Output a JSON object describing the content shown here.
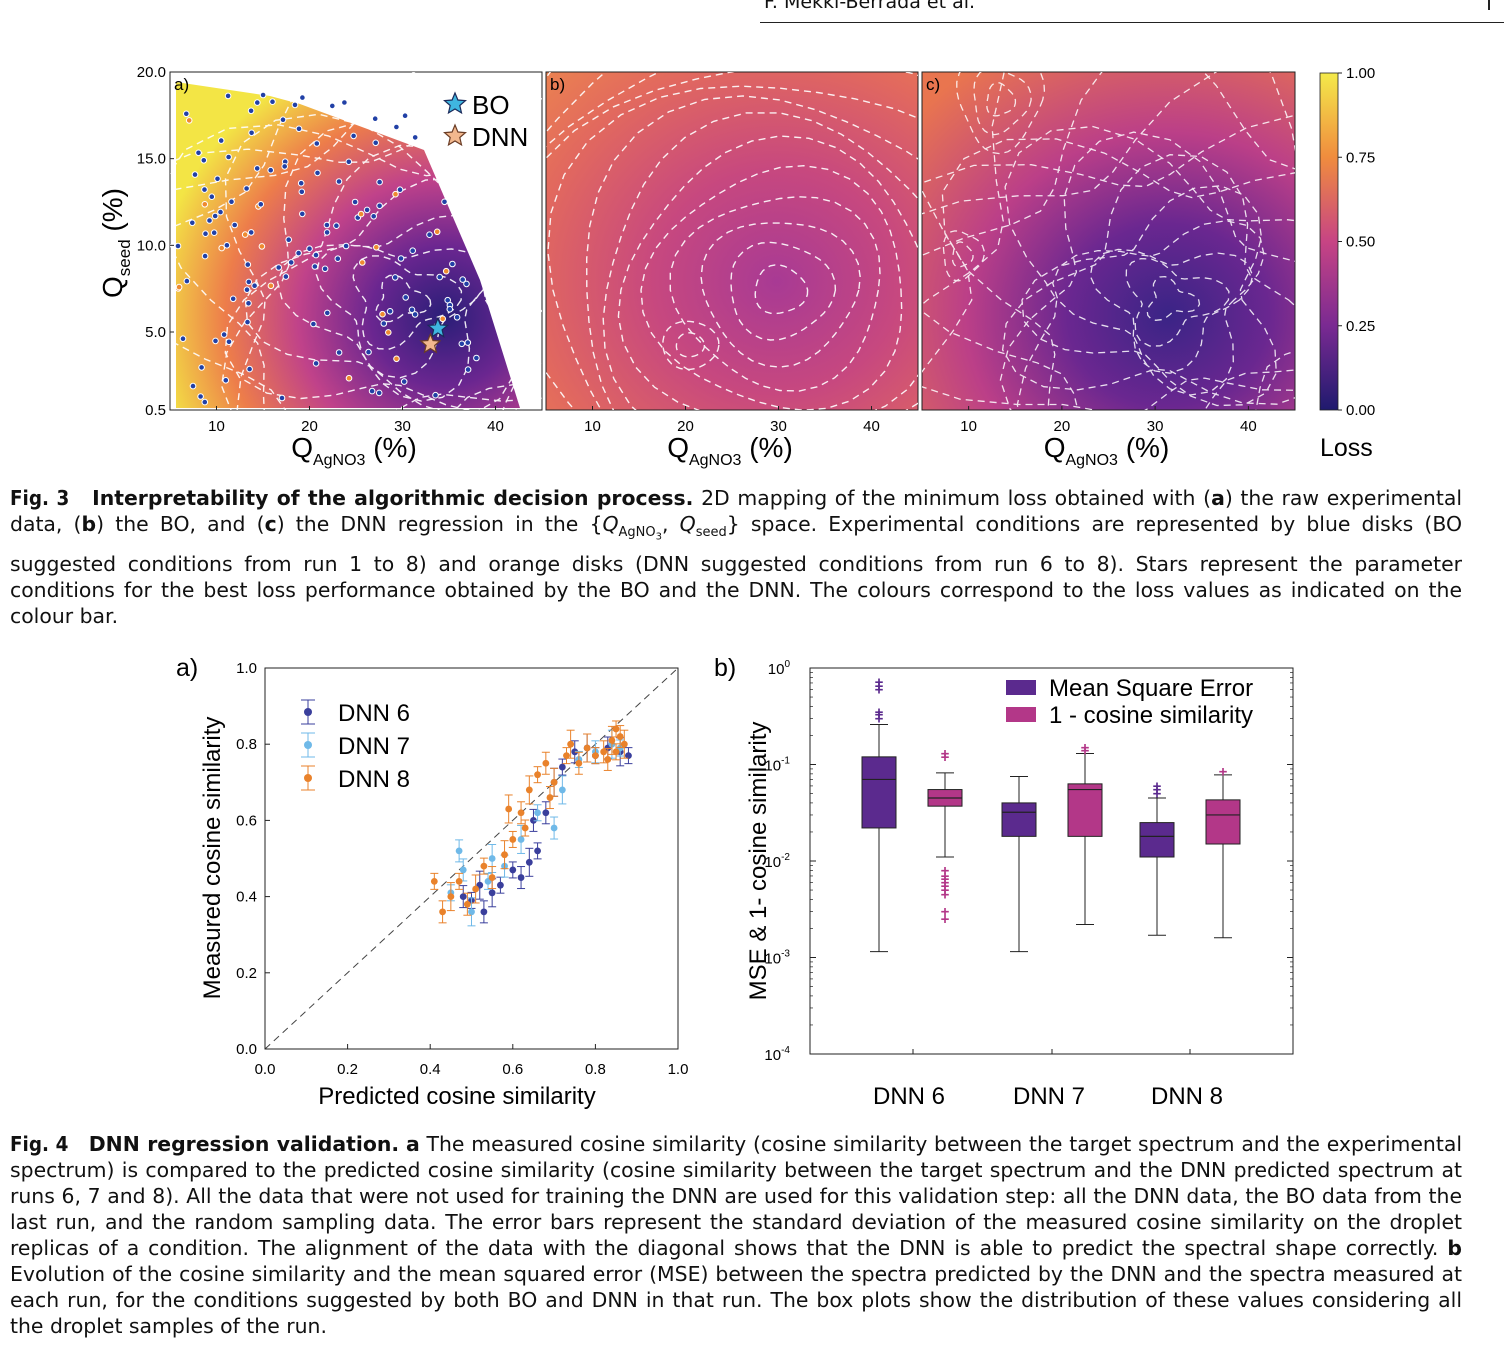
{
  "header": {
    "author": "F. Mekki-Berrada et al."
  },
  "fig3": {
    "panel_labels": [
      "a)",
      "b)",
      "c)"
    ],
    "legend": {
      "bo": "BO",
      "dnn": "DNN"
    },
    "y_label_main": "Q",
    "y_label_sub": "seed",
    "y_label_unit": " (%)",
    "x_label_main": "Q",
    "x_label_sub": "AgNO3",
    "x_label_unit": " (%)",
    "colorbar_label": "Loss",
    "colors": {
      "low": "#2a1e78",
      "mid": "#c0428a",
      "high": "#f3e545",
      "bo_point": "#2140a6",
      "dnn_point": "#ee8a30",
      "bo_star": "#3fb6e0",
      "dnn_star": "#f2b88e"
    },
    "chart_data": {
      "type": "heatmap",
      "x_ticks": [
        "10",
        "20",
        "30",
        "40"
      ],
      "y_ticks": [
        "20.0",
        "15.0",
        "10.0",
        "5.0",
        "0.5"
      ],
      "colorbar_ticks": [
        "1.00",
        "0.75",
        "0.50",
        "0.25",
        "0.00"
      ],
      "xlim": [
        5,
        45
      ],
      "ylim": [
        0.5,
        20
      ],
      "zlim": [
        0,
        1
      ],
      "best": {
        "bo": [
          33.8,
          5.2
        ],
        "dnn": [
          33.0,
          4.3
        ]
      }
    },
    "caption_label": "Fig. 3",
    "caption_title": "Interpretability of the algorithmic decision process.",
    "caption_parts": [
      "2D mapping of the minimum loss obtained with (",
      "a",
      ") the raw experimental data, (",
      "b",
      ") the BO, and (",
      "c",
      ") the DNN regression in the {",
      "Q",
      "AgNO",
      "3",
      ", ",
      "Q",
      "seed",
      "} space. Experimental conditions are represented by blue disks (BO suggested conditions from run 1 to 8) and orange disks (DNN suggested conditions from run 6 to 8). Stars represent the parameter conditions for the best loss performance obtained by the BO and the DNN. The colours correspond to the loss values as indicated on the colour bar."
    ]
  },
  "fig4": {
    "panel_a": {
      "label": "a)",
      "chart_data": {
        "type": "scatter",
        "xlabel": "Predicted cosine similarity",
        "ylabel": "Measured cosine similarity",
        "x_ticks": [
          "0.0",
          "0.2",
          "0.4",
          "0.6",
          "0.8",
          "1.0"
        ],
        "y_ticks": [
          "0.0",
          "0.2",
          "0.4",
          "0.6",
          "0.8",
          "1.0"
        ],
        "xlim": [
          0,
          1
        ],
        "ylim": [
          0,
          1
        ],
        "series": [
          {
            "name": "DNN 6",
            "color": "#3a3f9c",
            "points": [
              [
                0.5,
                0.39
              ],
              [
                0.53,
                0.36
              ],
              [
                0.55,
                0.41
              ],
              [
                0.57,
                0.43
              ],
              [
                0.62,
                0.45
              ],
              [
                0.64,
                0.49
              ],
              [
                0.66,
                0.52
              ],
              [
                0.68,
                0.62
              ],
              [
                0.7,
                0.7
              ],
              [
                0.72,
                0.74
              ],
              [
                0.75,
                0.78
              ],
              [
                0.78,
                0.79
              ],
              [
                0.8,
                0.77
              ],
              [
                0.83,
                0.79
              ],
              [
                0.86,
                0.78
              ],
              [
                0.88,
                0.77
              ],
              [
                0.48,
                0.4
              ],
              [
                0.52,
                0.43
              ],
              [
                0.6,
                0.47
              ],
              [
                0.65,
                0.6
              ]
            ]
          },
          {
            "name": "DNN 7",
            "color": "#6fb9e8",
            "points": [
              [
                0.45,
                0.41
              ],
              [
                0.48,
                0.47
              ],
              [
                0.5,
                0.36
              ],
              [
                0.54,
                0.44
              ],
              [
                0.58,
                0.48
              ],
              [
                0.62,
                0.55
              ],
              [
                0.66,
                0.62
              ],
              [
                0.7,
                0.58
              ],
              [
                0.72,
                0.68
              ],
              [
                0.76,
                0.76
              ],
              [
                0.8,
                0.78
              ],
              [
                0.84,
                0.8
              ],
              [
                0.86,
                0.79
              ],
              [
                0.47,
                0.52
              ],
              [
                0.55,
                0.5
              ]
            ]
          },
          {
            "name": "DNN 8",
            "color": "#e9822b",
            "points": [
              [
                0.41,
                0.44
              ],
              [
                0.43,
                0.36
              ],
              [
                0.45,
                0.4
              ],
              [
                0.47,
                0.44
              ],
              [
                0.49,
                0.38
              ],
              [
                0.51,
                0.42
              ],
              [
                0.53,
                0.48
              ],
              [
                0.55,
                0.45
              ],
              [
                0.58,
                0.51
              ],
              [
                0.6,
                0.55
              ],
              [
                0.62,
                0.62
              ],
              [
                0.64,
                0.68
              ],
              [
                0.66,
                0.72
              ],
              [
                0.68,
                0.75
              ],
              [
                0.7,
                0.7
              ],
              [
                0.73,
                0.77
              ],
              [
                0.76,
                0.75
              ],
              [
                0.78,
                0.79
              ],
              [
                0.8,
                0.77
              ],
              [
                0.82,
                0.78
              ],
              [
                0.84,
                0.81
              ],
              [
                0.85,
                0.84
              ],
              [
                0.86,
                0.82
              ],
              [
                0.87,
                0.8
              ],
              [
                0.85,
                0.78
              ],
              [
                0.83,
                0.76
              ],
              [
                0.59,
                0.63
              ],
              [
                0.63,
                0.58
              ],
              [
                0.69,
                0.66
              ],
              [
                0.74,
                0.8
              ]
            ]
          }
        ]
      }
    },
    "panel_b": {
      "label": "b)",
      "chart_data": {
        "type": "box",
        "ylabel": "MSE & 1- cosine similarity",
        "y_scale": "log",
        "ylim": [
          0.0001,
          1
        ],
        "y_tick_base": "10",
        "y_tick_exps": [
          "0",
          "-1",
          "-2",
          "-3",
          "-4"
        ],
        "categories": [
          "DNN 6",
          "DNN 7",
          "DNN 8"
        ],
        "series": [
          {
            "name": "Mean Square Error",
            "color": "#5b2a8e",
            "boxes": [
              {
                "q1": 0.022,
                "median": 0.07,
                "q3": 0.12,
                "whisker_low": 0.00115,
                "whisker_high": 0.26,
                "outliers": [
                  0.3,
                  0.33,
                  0.35,
                  0.6,
                  0.65,
                  0.72
                ]
              },
              {
                "q1": 0.018,
                "median": 0.032,
                "q3": 0.04,
                "whisker_low": 0.00115,
                "whisker_high": 0.075,
                "outliers": []
              },
              {
                "q1": 0.011,
                "median": 0.018,
                "q3": 0.025,
                "whisker_low": 0.0017,
                "whisker_high": 0.045,
                "outliers": [
                  0.05,
                  0.055,
                  0.06
                ]
              }
            ]
          },
          {
            "name": "1 - cosine similarity",
            "color": "#b33788",
            "boxes": [
              {
                "q1": 0.037,
                "median": 0.045,
                "q3": 0.055,
                "whisker_low": 0.011,
                "whisker_high": 0.082,
                "outliers": [
                  0.0025,
                  0.003,
                  0.0045,
                  0.005,
                  0.0055,
                  0.006,
                  0.0065,
                  0.007,
                  0.008,
                  0.12,
                  0.13
                ]
              },
              {
                "q1": 0.018,
                "median": 0.055,
                "q3": 0.063,
                "whisker_low": 0.0022,
                "whisker_high": 0.13,
                "outliers": [
                  0.14,
                  0.15
                ]
              },
              {
                "q1": 0.015,
                "median": 0.03,
                "q3": 0.043,
                "whisker_low": 0.0016,
                "whisker_high": 0.078,
                "outliers": [
                  0.085
                ]
              }
            ]
          }
        ]
      }
    },
    "caption_label": "Fig. 4",
    "caption_title": "DNN regression validation.",
    "caption_a": "a",
    "caption_text_a": "The measured cosine similarity (cosine similarity between the target spectrum and the experimental spectrum) is compared to the predicted cosine similarity (cosine similarity between the target spectrum and the DNN predicted spectrum at runs 6, 7 and 8). All the data that were not used for training the DNN are used for this validation step: all the DNN data, the BO data from the last run, and the random sampling data. The error bars represent the standard deviation of the measured cosine similarity on the droplet replicas of a condition. The alignment of the data with the diagonal shows that the DNN is able to predict the spectral shape correctly.",
    "caption_b": "b",
    "caption_text_b": "Evolution of the cosine similarity and the mean squared error (MSE) between the spectra predicted by the DNN and the spectra measured at each run, for the conditions suggested by both BO and DNN in that run. The box plots show the distribution of these values considering all the droplet samples of the run."
  }
}
